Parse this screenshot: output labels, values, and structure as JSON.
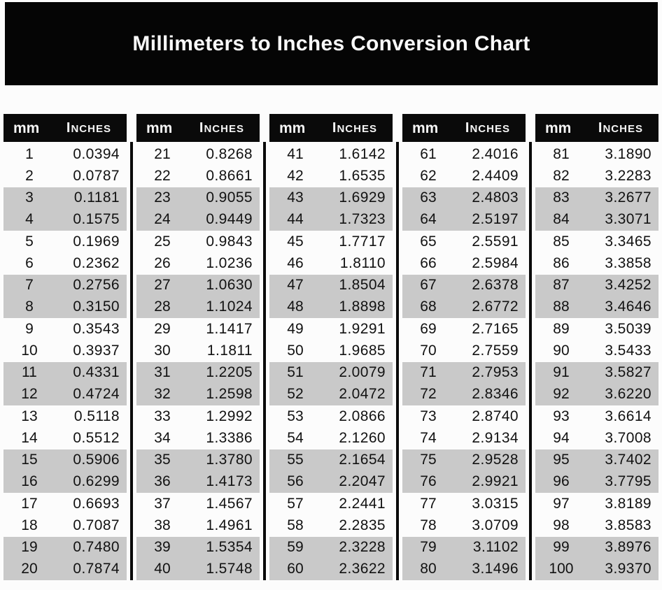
{
  "title": "Millimeters to Inches Conversion Chart",
  "colors": {
    "banner_bg": "#050505",
    "header_bg": "#0a0a0a",
    "shaded_row_bg": "#c9c9c9",
    "page_bg": "#fcfcfc",
    "title_text": "#fafafa",
    "data_text": "#121212"
  },
  "chart_data": {
    "type": "table",
    "title": "Millimeters to Inches Conversion Chart",
    "column_headers": {
      "mm": "mm",
      "inches": "Inches"
    },
    "groups": [
      {
        "rows": [
          {
            "mm": "1",
            "inches": "0.0394"
          },
          {
            "mm": "2",
            "inches": "0.0787"
          },
          {
            "mm": "3",
            "inches": "0.1181"
          },
          {
            "mm": "4",
            "inches": "0.1575"
          },
          {
            "mm": "5",
            "inches": "0.1969"
          },
          {
            "mm": "6",
            "inches": "0.2362"
          },
          {
            "mm": "7",
            "inches": "0.2756"
          },
          {
            "mm": "8",
            "inches": "0.3150"
          },
          {
            "mm": "9",
            "inches": "0.3543"
          },
          {
            "mm": "10",
            "inches": "0.3937"
          },
          {
            "mm": "11",
            "inches": "0.4331"
          },
          {
            "mm": "12",
            "inches": "0.4724"
          },
          {
            "mm": "13",
            "inches": "0.5118"
          },
          {
            "mm": "14",
            "inches": "0.5512"
          },
          {
            "mm": "15",
            "inches": "0.5906"
          },
          {
            "mm": "16",
            "inches": "0.6299"
          },
          {
            "mm": "17",
            "inches": "0.6693"
          },
          {
            "mm": "18",
            "inches": "0.7087"
          },
          {
            "mm": "19",
            "inches": "0.7480"
          },
          {
            "mm": "20",
            "inches": "0.7874"
          }
        ]
      },
      {
        "rows": [
          {
            "mm": "21",
            "inches": "0.8268"
          },
          {
            "mm": "22",
            "inches": "0.8661"
          },
          {
            "mm": "23",
            "inches": "0.9055"
          },
          {
            "mm": "24",
            "inches": "0.9449"
          },
          {
            "mm": "25",
            "inches": "0.9843"
          },
          {
            "mm": "26",
            "inches": "1.0236"
          },
          {
            "mm": "27",
            "inches": "1.0630"
          },
          {
            "mm": "28",
            "inches": "1.1024"
          },
          {
            "mm": "29",
            "inches": "1.1417"
          },
          {
            "mm": "30",
            "inches": "1.1811"
          },
          {
            "mm": "31",
            "inches": "1.2205"
          },
          {
            "mm": "32",
            "inches": "1.2598"
          },
          {
            "mm": "33",
            "inches": "1.2992"
          },
          {
            "mm": "34",
            "inches": "1.3386"
          },
          {
            "mm": "35",
            "inches": "1.3780"
          },
          {
            "mm": "36",
            "inches": "1.4173"
          },
          {
            "mm": "37",
            "inches": "1.4567"
          },
          {
            "mm": "38",
            "inches": "1.4961"
          },
          {
            "mm": "39",
            "inches": "1.5354"
          },
          {
            "mm": "40",
            "inches": "1.5748"
          }
        ]
      },
      {
        "rows": [
          {
            "mm": "41",
            "inches": "1.6142"
          },
          {
            "mm": "42",
            "inches": "1.6535"
          },
          {
            "mm": "43",
            "inches": "1.6929"
          },
          {
            "mm": "44",
            "inches": "1.7323"
          },
          {
            "mm": "45",
            "inches": "1.7717"
          },
          {
            "mm": "46",
            "inches": "1.8110"
          },
          {
            "mm": "47",
            "inches": "1.8504"
          },
          {
            "mm": "48",
            "inches": "1.8898"
          },
          {
            "mm": "49",
            "inches": "1.9291"
          },
          {
            "mm": "50",
            "inches": "1.9685"
          },
          {
            "mm": "51",
            "inches": "2.0079"
          },
          {
            "mm": "52",
            "inches": "2.0472"
          },
          {
            "mm": "53",
            "inches": "2.0866"
          },
          {
            "mm": "54",
            "inches": "2.1260"
          },
          {
            "mm": "55",
            "inches": "2.1654"
          },
          {
            "mm": "56",
            "inches": "2.2047"
          },
          {
            "mm": "57",
            "inches": "2.2441"
          },
          {
            "mm": "58",
            "inches": "2.2835"
          },
          {
            "mm": "59",
            "inches": "2.3228"
          },
          {
            "mm": "60",
            "inches": "2.3622"
          }
        ]
      },
      {
        "rows": [
          {
            "mm": "61",
            "inches": "2.4016"
          },
          {
            "mm": "62",
            "inches": "2.4409"
          },
          {
            "mm": "63",
            "inches": "2.4803"
          },
          {
            "mm": "64",
            "inches": "2.5197"
          },
          {
            "mm": "65",
            "inches": "2.5591"
          },
          {
            "mm": "66",
            "inches": "2.5984"
          },
          {
            "mm": "67",
            "inches": "2.6378"
          },
          {
            "mm": "68",
            "inches": "2.6772"
          },
          {
            "mm": "69",
            "inches": "2.7165"
          },
          {
            "mm": "70",
            "inches": "2.7559"
          },
          {
            "mm": "71",
            "inches": "2.7953"
          },
          {
            "mm": "72",
            "inches": "2.8346"
          },
          {
            "mm": "73",
            "inches": "2.8740"
          },
          {
            "mm": "74",
            "inches": "2.9134"
          },
          {
            "mm": "75",
            "inches": "2.9528"
          },
          {
            "mm": "76",
            "inches": "2.9921"
          },
          {
            "mm": "77",
            "inches": "3.0315"
          },
          {
            "mm": "78",
            "inches": "3.0709"
          },
          {
            "mm": "79",
            "inches": "3.1102"
          },
          {
            "mm": "80",
            "inches": "3.1496"
          }
        ]
      },
      {
        "rows": [
          {
            "mm": "81",
            "inches": "3.1890"
          },
          {
            "mm": "82",
            "inches": "3.2283"
          },
          {
            "mm": "83",
            "inches": "3.2677"
          },
          {
            "mm": "84",
            "inches": "3.3071"
          },
          {
            "mm": "85",
            "inches": "3.3465"
          },
          {
            "mm": "86",
            "inches": "3.3858"
          },
          {
            "mm": "87",
            "inches": "3.4252"
          },
          {
            "mm": "88",
            "inches": "3.4646"
          },
          {
            "mm": "89",
            "inches": "3.5039"
          },
          {
            "mm": "90",
            "inches": "3.5433"
          },
          {
            "mm": "91",
            "inches": "3.5827"
          },
          {
            "mm": "92",
            "inches": "3.6220"
          },
          {
            "mm": "93",
            "inches": "3.6614"
          },
          {
            "mm": "94",
            "inches": "3.7008"
          },
          {
            "mm": "95",
            "inches": "3.7402"
          },
          {
            "mm": "96",
            "inches": "3.7795"
          },
          {
            "mm": "97",
            "inches": "3.8189"
          },
          {
            "mm": "98",
            "inches": "3.8583"
          },
          {
            "mm": "99",
            "inches": "3.8976"
          },
          {
            "mm": "100",
            "inches": "3.9370"
          }
        ]
      }
    ]
  }
}
